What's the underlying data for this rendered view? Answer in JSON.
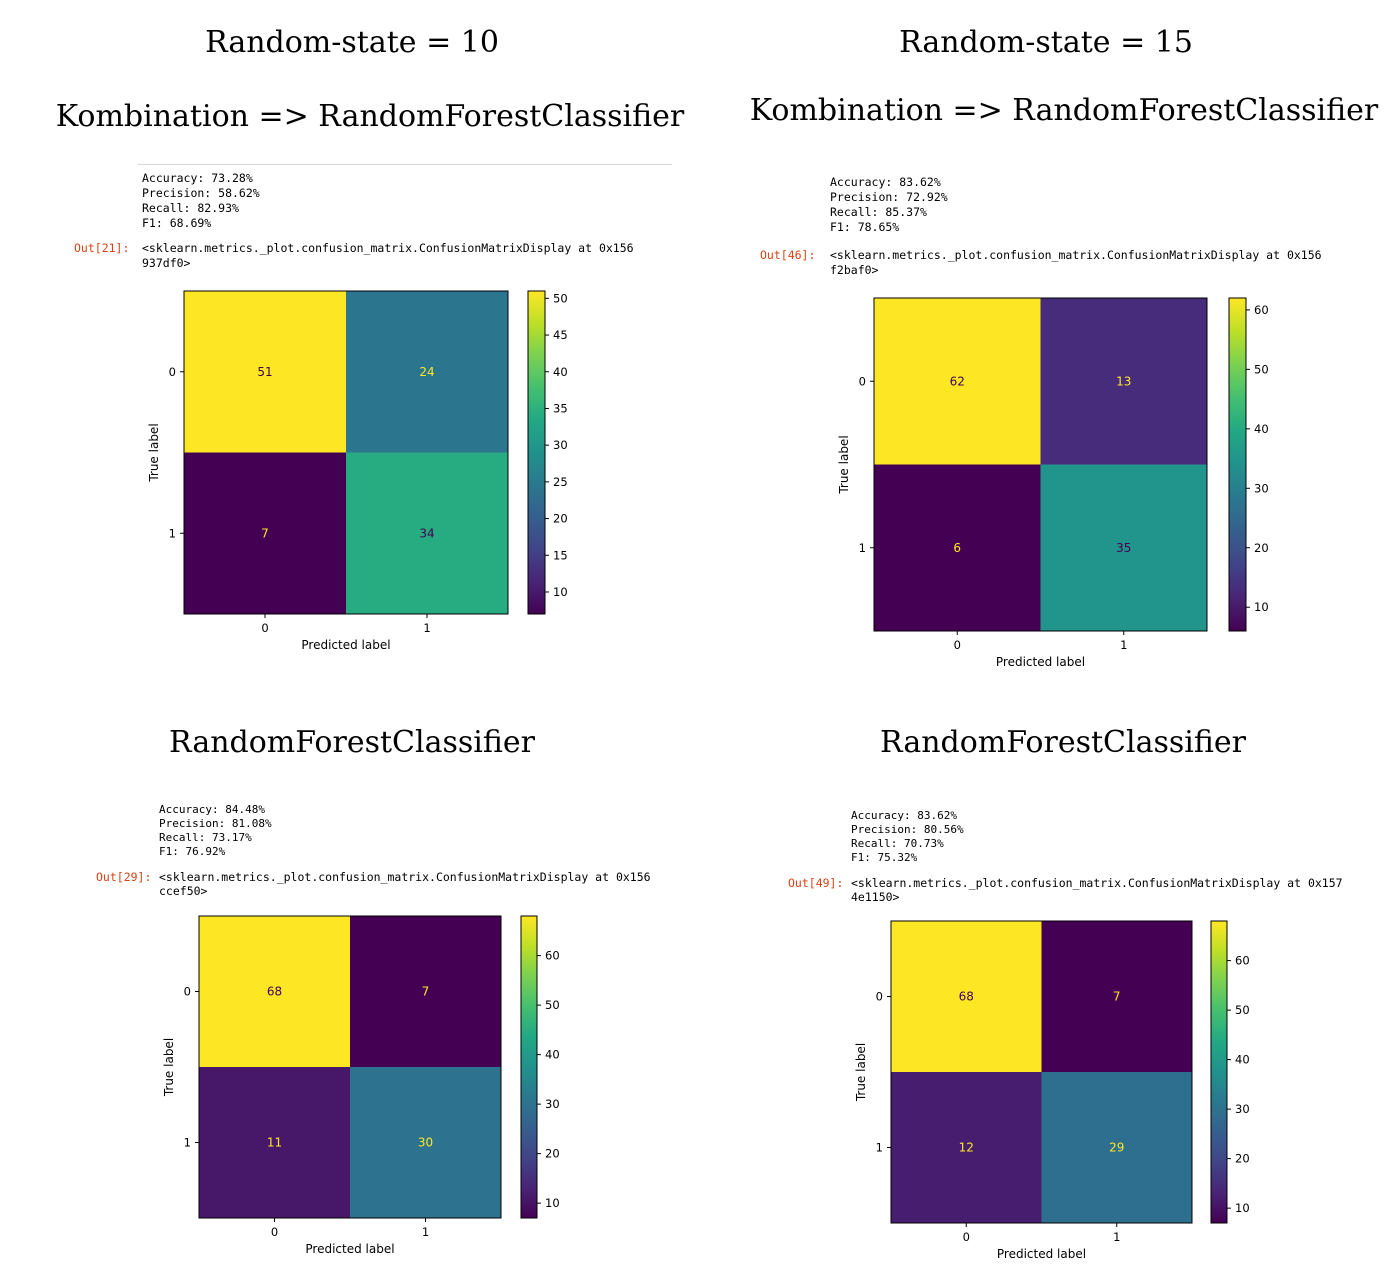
{
  "headings": {
    "rs10": "Random-state = 10",
    "rs15": "Random-state = 15",
    "combo_left": "Kombination => RandomForestClassifier",
    "combo_right": "Kombination => RandomForestClassifier",
    "rf_left": "RandomForestClassifier",
    "rf_right": "RandomForestClassifier"
  },
  "chart_data": [
    {
      "type": "heatmap",
      "metrics": [
        "Accuracy: 73.28%",
        "Precision: 58.62%",
        "Recall: 82.93%",
        "F1: 68.69%"
      ],
      "out_prompt": "Out[21]:",
      "out_text": [
        "<sklearn.metrics._plot.confusion_matrix.ConfusionMatrixDisplay at 0x156",
        "937df0>"
      ],
      "xlabel": "Predicted label",
      "ylabel": "True label",
      "x_ticks": [
        "0",
        "1"
      ],
      "y_ticks": [
        "0",
        "1"
      ],
      "matrix": [
        [
          51,
          24
        ],
        [
          7,
          34
        ]
      ],
      "colorbar_ticks": [
        10,
        15,
        20,
        25,
        30,
        35,
        40,
        45,
        50
      ],
      "colormap": "viridis"
    },
    {
      "type": "heatmap",
      "metrics": [
        "Accuracy: 83.62%",
        "Precision: 72.92%",
        "Recall: 85.37%",
        "F1: 78.65%"
      ],
      "out_prompt": "Out[46]:",
      "out_text": [
        "<sklearn.metrics._plot.confusion_matrix.ConfusionMatrixDisplay at 0x156",
        "f2baf0>"
      ],
      "xlabel": "Predicted label",
      "ylabel": "True label",
      "x_ticks": [
        "0",
        "1"
      ],
      "y_ticks": [
        "0",
        "1"
      ],
      "matrix": [
        [
          62,
          13
        ],
        [
          6,
          35
        ]
      ],
      "colorbar_ticks": [
        10,
        20,
        30,
        40,
        50,
        60
      ],
      "colormap": "viridis"
    },
    {
      "type": "heatmap",
      "metrics": [
        "Accuracy: 84.48%",
        "Precision: 81.08%",
        "Recall: 73.17%",
        "F1: 76.92%"
      ],
      "out_prompt": "Out[29]:",
      "out_text": [
        "<sklearn.metrics._plot.confusion_matrix.ConfusionMatrixDisplay at 0x156",
        "ccef50>"
      ],
      "xlabel": "Predicted label",
      "ylabel": "True label",
      "x_ticks": [
        "0",
        "1"
      ],
      "y_ticks": [
        "0",
        "1"
      ],
      "matrix": [
        [
          68,
          7
        ],
        [
          11,
          30
        ]
      ],
      "colorbar_ticks": [
        10,
        20,
        30,
        40,
        50,
        60
      ],
      "colormap": "viridis"
    },
    {
      "type": "heatmap",
      "metrics": [
        "Accuracy: 83.62%",
        "Precision: 80.56%",
        "Recall: 70.73%",
        "F1: 75.32%"
      ],
      "out_prompt": "Out[49]:",
      "out_text": [
        "<sklearn.metrics._plot.confusion_matrix.ConfusionMatrixDisplay at 0x157",
        "4e1150>"
      ],
      "xlabel": "Predicted label",
      "ylabel": "True label",
      "x_ticks": [
        "0",
        "1"
      ],
      "y_ticks": [
        "0",
        "1"
      ],
      "matrix": [
        [
          68,
          7
        ],
        [
          12,
          29
        ]
      ],
      "colorbar_ticks": [
        10,
        20,
        30,
        40,
        50,
        60
      ],
      "colormap": "viridis"
    }
  ]
}
